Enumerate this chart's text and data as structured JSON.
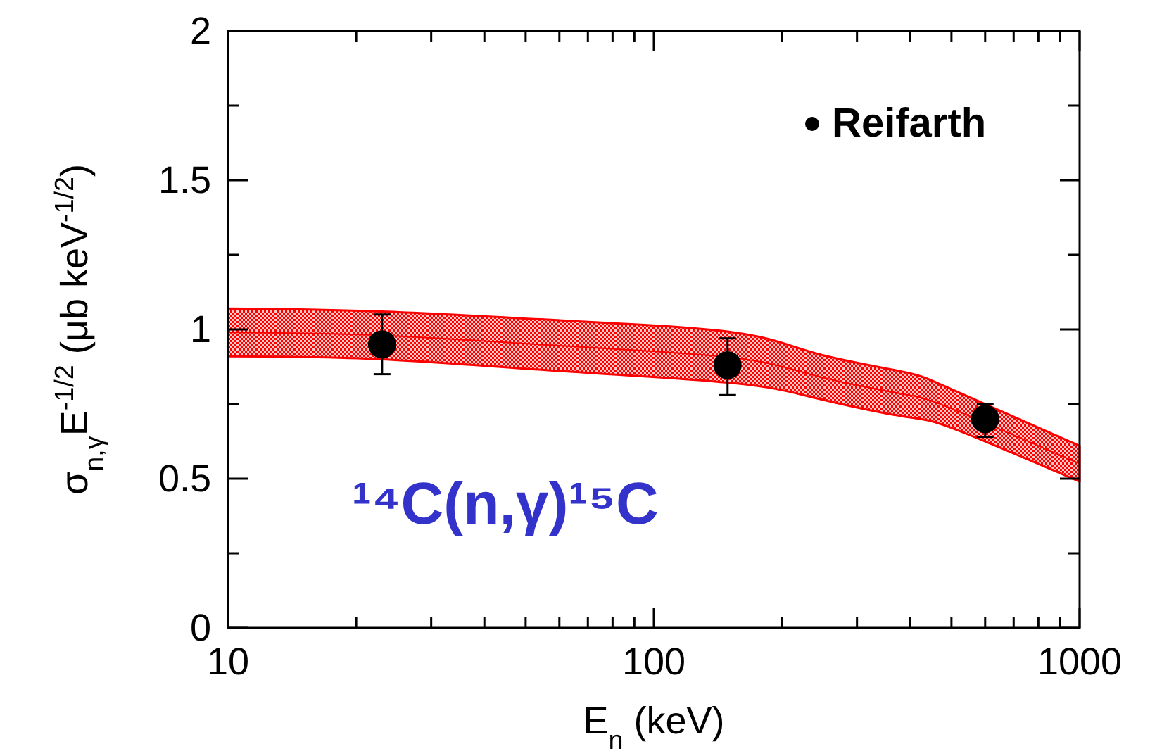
{
  "chart_data": {
    "type": "scatter",
    "xlabel": "E$_{n}$ (keV)",
    "ylabel": "σ$_{n,γ}$E$^{-1/2}$ (μb keV$^{-1/2}$)",
    "log": "x",
    "xlim": [
      10,
      1000
    ],
    "ylim": [
      0,
      2
    ],
    "xticks": [
      10,
      {
        "value": 20,
        "label": null
      },
      {
        "value": 30,
        "label": null
      },
      {
        "value": 40,
        "label": null
      },
      {
        "value": 50,
        "label": null
      },
      {
        "value": 60,
        "label": null
      },
      {
        "value": 70,
        "label": null
      },
      {
        "value": 80,
        "label": null
      },
      {
        "value": 90,
        "label": null
      },
      100,
      {
        "value": 200,
        "label": null
      },
      {
        "value": 300,
        "label": null
      },
      {
        "value": 400,
        "label": null
      },
      {
        "value": 500,
        "label": null
      },
      {
        "value": 600,
        "label": null
      },
      {
        "value": 700,
        "label": null
      },
      {
        "value": 800,
        "label": null
      },
      {
        "value": 900,
        "label": null
      },
      1000
    ],
    "yticks": [
      0,
      {
        "value": 0.25,
        "label": null
      },
      0.5,
      {
        "value": 0.75,
        "label": null
      },
      1,
      {
        "value": 1.25,
        "label": null
      },
      1.5,
      {
        "value": 1.75,
        "label": null
      },
      2
    ],
    "legend": "top right",
    "marker": "circle",
    "series": [
      {
        "type": "line",
        "marker": "none",
        "color": "#ff0000",
        "x": [
          10,
          23,
          61,
          154,
          240,
          380,
          500,
          1000
        ],
        "values": [
          0.99,
          0.98,
          0.945,
          0.905,
          0.845,
          0.785,
          0.735,
          0.55
        ],
        "lower": [
          0.91,
          0.9,
          0.86,
          0.82,
          0.77,
          0.71,
          0.67,
          0.49
        ],
        "upper": [
          1.07,
          1.06,
          1.03,
          0.99,
          0.92,
          0.86,
          0.8,
          0.61
        ]
      },
      {
        "name": "Reifarth",
        "color": "#000000",
        "x": [
          23,
          149,
          600
        ],
        "values": [
          0.95,
          0.88,
          0.7
        ],
        "errors": [
          [
            0.85,
            1.05
          ],
          [
            0.78,
            0.97
          ],
          [
            0.64,
            0.75
          ]
        ]
      }
    ],
    "annotations": [
      "¹⁴C(n,γ)¹⁵C"
    ]
  }
}
